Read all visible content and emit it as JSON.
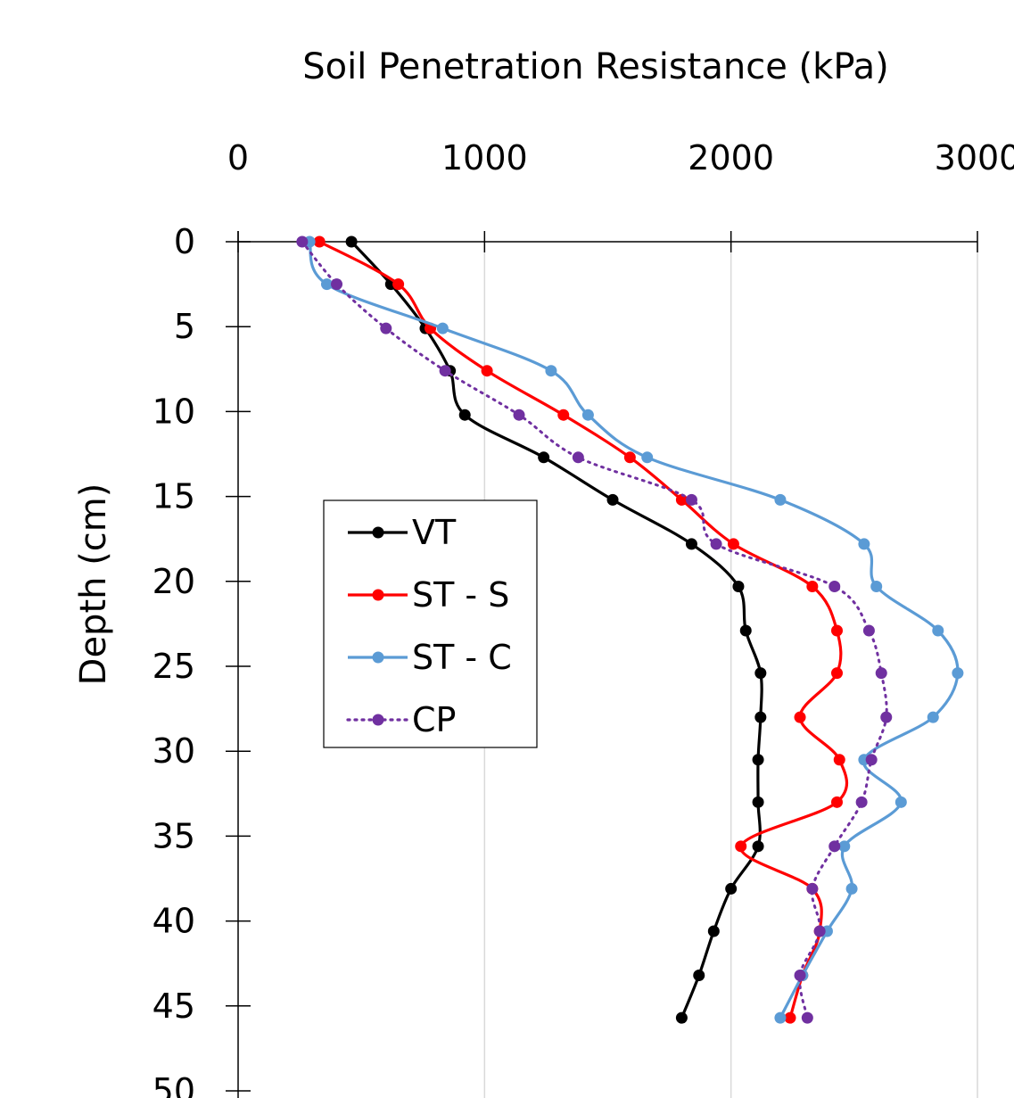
{
  "chart_data": {
    "type": "line",
    "title": "",
    "xlabel": "Soil Penetration Resistance (kPa)",
    "ylabel": "Depth (cm)",
    "xlim": [
      0,
      3000
    ],
    "ylim": [
      0,
      50
    ],
    "x_axis_position": "top",
    "y_axis_inverted": true,
    "x_ticks": [
      "0",
      "1000",
      "2000",
      "3000"
    ],
    "y_ticks": [
      "0",
      "5",
      "10",
      "15",
      "20",
      "25",
      "30",
      "35",
      "40",
      "45",
      "50"
    ],
    "grid": "vertical",
    "legend_position": "center-left",
    "series": [
      {
        "name": "VT",
        "color": "#000000",
        "style": "solid",
        "points": [
          [
            460,
            0
          ],
          [
            620,
            2.5
          ],
          [
            760,
            5.1
          ],
          [
            860,
            7.6
          ],
          [
            920,
            10.2
          ],
          [
            1240,
            12.7
          ],
          [
            1520,
            15.2
          ],
          [
            1840,
            17.8
          ],
          [
            2030,
            20.3
          ],
          [
            2060,
            22.9
          ],
          [
            2120,
            25.4
          ],
          [
            2120,
            28.0
          ],
          [
            2110,
            30.5
          ],
          [
            2110,
            33.0
          ],
          [
            2110,
            35.6
          ],
          [
            2000,
            38.1
          ],
          [
            1930,
            40.6
          ],
          [
            1870,
            43.2
          ],
          [
            1800,
            45.7
          ]
        ]
      },
      {
        "name": "ST - S",
        "color": "#ff0000",
        "style": "solid",
        "points": [
          [
            330,
            0
          ],
          [
            650,
            2.5
          ],
          [
            780,
            5.1
          ],
          [
            1010,
            7.6
          ],
          [
            1320,
            10.2
          ],
          [
            1590,
            12.7
          ],
          [
            1800,
            15.2
          ],
          [
            2010,
            17.8
          ],
          [
            2330,
            20.3
          ],
          [
            2430,
            22.9
          ],
          [
            2430,
            25.4
          ],
          [
            2280,
            28.0
          ],
          [
            2440,
            30.5
          ],
          [
            2430,
            33.0
          ],
          [
            2040,
            35.6
          ],
          [
            2330,
            38.1
          ],
          [
            2360,
            40.6
          ],
          [
            2290,
            43.2
          ],
          [
            2240,
            45.7
          ]
        ]
      },
      {
        "name": "ST - C",
        "color": "#5b9bd5",
        "style": "solid",
        "points": [
          [
            290,
            0
          ],
          [
            360,
            2.5
          ],
          [
            830,
            5.1
          ],
          [
            1270,
            7.6
          ],
          [
            1420,
            10.2
          ],
          [
            1660,
            12.7
          ],
          [
            2200,
            15.2
          ],
          [
            2540,
            17.8
          ],
          [
            2590,
            20.3
          ],
          [
            2840,
            22.9
          ],
          [
            2920,
            25.4
          ],
          [
            2820,
            28.0
          ],
          [
            2540,
            30.5
          ],
          [
            2690,
            33.0
          ],
          [
            2460,
            35.6
          ],
          [
            2490,
            38.1
          ],
          [
            2390,
            40.6
          ],
          [
            2290,
            43.2
          ],
          [
            2200,
            45.7
          ]
        ]
      },
      {
        "name": "CP",
        "color": "#7030a0",
        "style": "dotted",
        "points": [
          [
            260,
            0
          ],
          [
            400,
            2.5
          ],
          [
            600,
            5.1
          ],
          [
            840,
            7.6
          ],
          [
            1140,
            10.2
          ],
          [
            1380,
            12.7
          ],
          [
            1840,
            15.2
          ],
          [
            1940,
            17.8
          ],
          [
            2420,
            20.3
          ],
          [
            2560,
            22.9
          ],
          [
            2610,
            25.4
          ],
          [
            2630,
            28.0
          ],
          [
            2570,
            30.5
          ],
          [
            2530,
            33.0
          ],
          [
            2420,
            35.6
          ],
          [
            2330,
            38.1
          ],
          [
            2360,
            40.6
          ],
          [
            2280,
            43.2
          ],
          [
            2310,
            45.7
          ]
        ]
      }
    ]
  }
}
